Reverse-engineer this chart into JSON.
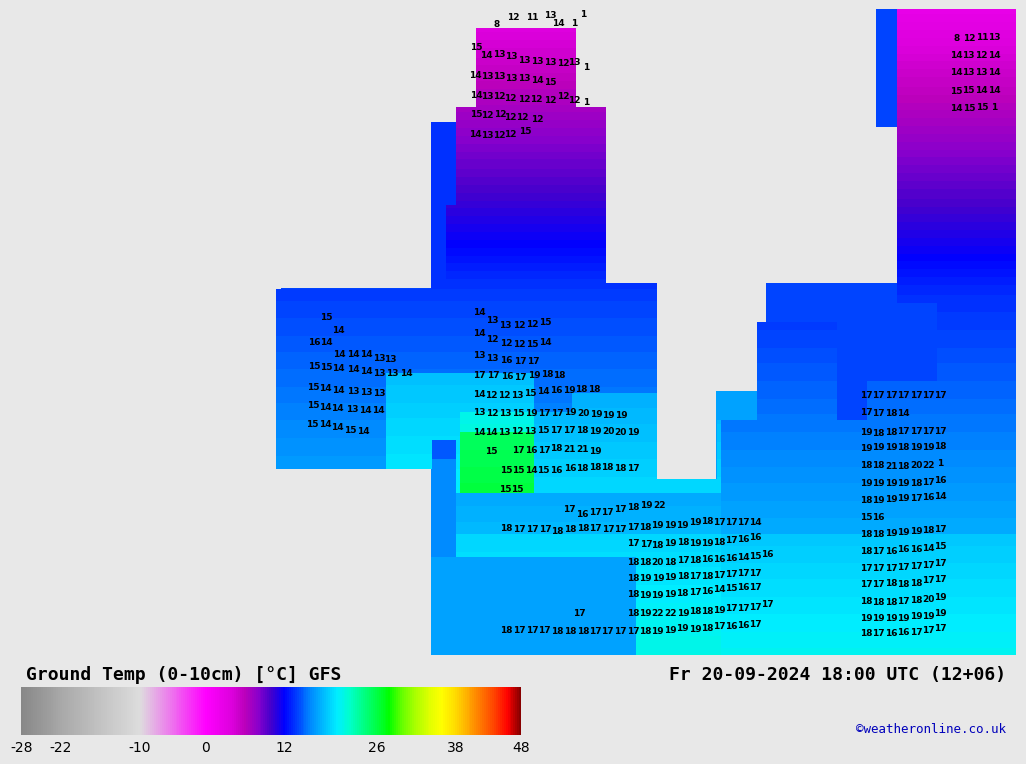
{
  "title_left": "Ground Temp (0-10cm) [°C] GFS",
  "title_right": "Fr 20-09-2024 18:00 UTC (12+06)",
  "credit": "©weatheronline.co.uk",
  "bg_color": "#e8e8e8",
  "sea_color": "#d8d8d8",
  "colorbar_ticks": [
    -28,
    -22,
    -10,
    0,
    12,
    26,
    38,
    48
  ],
  "cmap_nodes": [
    [
      0.0,
      "#888888"
    ],
    [
      0.083,
      "#aaaaaa"
    ],
    [
      0.237,
      "#dddddd"
    ],
    [
      0.368,
      "#ff00ff"
    ],
    [
      0.421,
      "#dd00dd"
    ],
    [
      0.447,
      "#bb00bb"
    ],
    [
      0.474,
      "#8800cc"
    ],
    [
      0.5,
      "#4400cc"
    ],
    [
      0.526,
      "#0000ff"
    ],
    [
      0.553,
      "#0044ff"
    ],
    [
      0.579,
      "#0088ff"
    ],
    [
      0.605,
      "#00bbff"
    ],
    [
      0.632,
      "#00eeff"
    ],
    [
      0.658,
      "#00ffcc"
    ],
    [
      0.684,
      "#00ff88"
    ],
    [
      0.711,
      "#00ff44"
    ],
    [
      0.737,
      "#00ff00"
    ],
    [
      0.763,
      "#66ff00"
    ],
    [
      0.789,
      "#aaff00"
    ],
    [
      0.816,
      "#ddff00"
    ],
    [
      0.842,
      "#ffff00"
    ],
    [
      0.868,
      "#ffdd00"
    ],
    [
      0.895,
      "#ffaa00"
    ],
    [
      0.921,
      "#ff7700"
    ],
    [
      0.947,
      "#ff4400"
    ],
    [
      0.974,
      "#ff0000"
    ],
    [
      1.0,
      "#880000"
    ]
  ],
  "temp_labels": [
    [
      480,
      15,
      "8"
    ],
    [
      497,
      8,
      "12"
    ],
    [
      516,
      8,
      "11"
    ],
    [
      534,
      6,
      "13"
    ],
    [
      542,
      14,
      "14"
    ],
    [
      558,
      14,
      "1"
    ],
    [
      567,
      5,
      "1"
    ],
    [
      460,
      38,
      "15"
    ],
    [
      470,
      47,
      "14"
    ],
    [
      483,
      46,
      "13"
    ],
    [
      495,
      48,
      "13"
    ],
    [
      508,
      52,
      "13"
    ],
    [
      521,
      53,
      "13"
    ],
    [
      534,
      54,
      "13"
    ],
    [
      547,
      55,
      "12"
    ],
    [
      558,
      54,
      "13"
    ],
    [
      570,
      59,
      "1"
    ],
    [
      459,
      67,
      "14"
    ],
    [
      471,
      68,
      "13"
    ],
    [
      483,
      68,
      "13"
    ],
    [
      495,
      70,
      "13"
    ],
    [
      508,
      70,
      "13"
    ],
    [
      521,
      72,
      "14"
    ],
    [
      534,
      74,
      "15"
    ],
    [
      460,
      87,
      "14"
    ],
    [
      471,
      88,
      "13"
    ],
    [
      483,
      89,
      "12"
    ],
    [
      494,
      91,
      "12"
    ],
    [
      508,
      92,
      "12"
    ],
    [
      520,
      92,
      "12"
    ],
    [
      534,
      93,
      "12"
    ],
    [
      547,
      88,
      "12"
    ],
    [
      558,
      93,
      "12"
    ],
    [
      570,
      95,
      "1"
    ],
    [
      460,
      107,
      "15"
    ],
    [
      471,
      108,
      "12"
    ],
    [
      484,
      107,
      "12"
    ],
    [
      494,
      110,
      "12"
    ],
    [
      506,
      110,
      "12"
    ],
    [
      521,
      112,
      "12"
    ],
    [
      459,
      127,
      "14"
    ],
    [
      471,
      128,
      "13"
    ],
    [
      483,
      128,
      "12"
    ],
    [
      494,
      127,
      "12"
    ],
    [
      509,
      124,
      "15"
    ],
    [
      310,
      315,
      "15"
    ],
    [
      322,
      328,
      "14"
    ],
    [
      298,
      340,
      "16"
    ],
    [
      310,
      340,
      "14"
    ],
    [
      323,
      352,
      "14"
    ],
    [
      337,
      353,
      "14"
    ],
    [
      350,
      352,
      "14"
    ],
    [
      363,
      357,
      "13"
    ],
    [
      374,
      358,
      "13"
    ],
    [
      298,
      365,
      "15"
    ],
    [
      310,
      366,
      "15"
    ],
    [
      322,
      367,
      "14"
    ],
    [
      337,
      368,
      "14"
    ],
    [
      350,
      370,
      "14"
    ],
    [
      363,
      372,
      "13"
    ],
    [
      376,
      372,
      "13"
    ],
    [
      390,
      372,
      "14"
    ],
    [
      297,
      386,
      "15"
    ],
    [
      309,
      387,
      "14"
    ],
    [
      322,
      389,
      "14"
    ],
    [
      337,
      390,
      "13"
    ],
    [
      350,
      391,
      "13"
    ],
    [
      363,
      392,
      "13"
    ],
    [
      297,
      405,
      "15"
    ],
    [
      309,
      407,
      "14"
    ],
    [
      321,
      408,
      "14"
    ],
    [
      336,
      409,
      "13"
    ],
    [
      349,
      410,
      "14"
    ],
    [
      362,
      410,
      "14"
    ],
    [
      296,
      424,
      "15"
    ],
    [
      309,
      424,
      "14"
    ],
    [
      321,
      427,
      "14"
    ],
    [
      334,
      430,
      "15"
    ],
    [
      347,
      431,
      "14"
    ],
    [
      463,
      310,
      "14"
    ],
    [
      476,
      318,
      "13"
    ],
    [
      489,
      323,
      "13"
    ],
    [
      503,
      323,
      "12"
    ],
    [
      516,
      322,
      "12"
    ],
    [
      529,
      320,
      "15"
    ],
    [
      463,
      331,
      "14"
    ],
    [
      476,
      337,
      "12"
    ],
    [
      490,
      341,
      "12"
    ],
    [
      503,
      342,
      "12"
    ],
    [
      516,
      342,
      "15"
    ],
    [
      529,
      340,
      "14"
    ],
    [
      463,
      354,
      "13"
    ],
    [
      476,
      357,
      "13"
    ],
    [
      490,
      359,
      "16"
    ],
    [
      504,
      360,
      "17"
    ],
    [
      517,
      360,
      "17"
    ],
    [
      463,
      374,
      "17"
    ],
    [
      477,
      374,
      "17"
    ],
    [
      491,
      375,
      "16"
    ],
    [
      504,
      376,
      "17"
    ],
    [
      518,
      374,
      "19"
    ],
    [
      531,
      373,
      "18"
    ],
    [
      543,
      374,
      "18"
    ],
    [
      463,
      393,
      "14"
    ],
    [
      475,
      394,
      "12"
    ],
    [
      488,
      394,
      "12"
    ],
    [
      501,
      394,
      "13"
    ],
    [
      514,
      392,
      "15"
    ],
    [
      527,
      390,
      "14"
    ],
    [
      540,
      389,
      "16"
    ],
    [
      553,
      389,
      "19"
    ],
    [
      565,
      388,
      "18"
    ],
    [
      578,
      388,
      "18"
    ],
    [
      463,
      412,
      "13"
    ],
    [
      476,
      413,
      "12"
    ],
    [
      489,
      413,
      "13"
    ],
    [
      502,
      413,
      "15"
    ],
    [
      515,
      413,
      "19"
    ],
    [
      528,
      413,
      "17"
    ],
    [
      541,
      413,
      "17"
    ],
    [
      554,
      412,
      "19"
    ],
    [
      567,
      413,
      "20"
    ],
    [
      580,
      414,
      "19"
    ],
    [
      592,
      415,
      "19"
    ],
    [
      605,
      415,
      "19"
    ],
    [
      463,
      432,
      "14"
    ],
    [
      475,
      432,
      "14"
    ],
    [
      488,
      432,
      "13"
    ],
    [
      501,
      431,
      "12"
    ],
    [
      514,
      431,
      "13"
    ],
    [
      527,
      430,
      "15"
    ],
    [
      540,
      430,
      "17"
    ],
    [
      553,
      430,
      "17"
    ],
    [
      566,
      430,
      "18"
    ],
    [
      579,
      431,
      "19"
    ],
    [
      592,
      431,
      "20"
    ],
    [
      604,
      432,
      "20"
    ],
    [
      617,
      432,
      "19"
    ],
    [
      475,
      452,
      "15"
    ],
    [
      502,
      451,
      "17"
    ],
    [
      515,
      451,
      "16"
    ],
    [
      528,
      451,
      "17"
    ],
    [
      540,
      449,
      "18"
    ],
    [
      553,
      450,
      "21"
    ],
    [
      566,
      450,
      "21"
    ],
    [
      579,
      452,
      "19"
    ],
    [
      490,
      471,
      "15"
    ],
    [
      502,
      471,
      "15"
    ],
    [
      515,
      471,
      "14"
    ],
    [
      527,
      471,
      "15"
    ],
    [
      540,
      471,
      "16"
    ],
    [
      554,
      469,
      "16"
    ],
    [
      566,
      469,
      "18"
    ],
    [
      579,
      468,
      "18"
    ],
    [
      591,
      468,
      "18"
    ],
    [
      604,
      469,
      "18"
    ],
    [
      617,
      469,
      "17"
    ],
    [
      489,
      491,
      "15"
    ],
    [
      501,
      491,
      "15"
    ],
    [
      553,
      511,
      "17"
    ],
    [
      566,
      516,
      "16"
    ],
    [
      579,
      514,
      "17"
    ],
    [
      591,
      514,
      "17"
    ],
    [
      604,
      511,
      "17"
    ],
    [
      617,
      509,
      "18"
    ],
    [
      630,
      507,
      "19"
    ],
    [
      643,
      507,
      "22"
    ],
    [
      490,
      531,
      "18"
    ],
    [
      503,
      532,
      "17"
    ],
    [
      516,
      532,
      "17"
    ],
    [
      529,
      532,
      "17"
    ],
    [
      541,
      534,
      "18"
    ],
    [
      554,
      532,
      "18"
    ],
    [
      567,
      531,
      "18"
    ],
    [
      579,
      531,
      "17"
    ],
    [
      592,
      532,
      "17"
    ],
    [
      604,
      532,
      "17"
    ],
    [
      617,
      530,
      "17"
    ],
    [
      629,
      529,
      "18"
    ],
    [
      641,
      527,
      "19"
    ],
    [
      654,
      527,
      "19"
    ],
    [
      666,
      527,
      "19"
    ],
    [
      679,
      524,
      "19"
    ],
    [
      691,
      523,
      "18"
    ],
    [
      703,
      524,
      "17"
    ],
    [
      715,
      524,
      "17"
    ],
    [
      727,
      524,
      "17"
    ],
    [
      739,
      524,
      "14"
    ],
    [
      617,
      546,
      "17"
    ],
    [
      630,
      547,
      "17"
    ],
    [
      641,
      548,
      "18"
    ],
    [
      654,
      546,
      "19"
    ],
    [
      667,
      545,
      "18"
    ],
    [
      679,
      546,
      "19"
    ],
    [
      691,
      546,
      "19"
    ],
    [
      703,
      545,
      "18"
    ],
    [
      715,
      543,
      "17"
    ],
    [
      727,
      542,
      "16"
    ],
    [
      739,
      540,
      "16"
    ],
    [
      617,
      565,
      "18"
    ],
    [
      629,
      565,
      "18"
    ],
    [
      641,
      565,
      "20"
    ],
    [
      654,
      565,
      "18"
    ],
    [
      667,
      563,
      "17"
    ],
    [
      679,
      563,
      "18"
    ],
    [
      691,
      562,
      "16"
    ],
    [
      703,
      562,
      "16"
    ],
    [
      715,
      561,
      "16"
    ],
    [
      727,
      560,
      "14"
    ],
    [
      739,
      559,
      "15"
    ],
    [
      751,
      557,
      "16"
    ],
    [
      617,
      582,
      "18"
    ],
    [
      629,
      582,
      "19"
    ],
    [
      642,
      582,
      "19"
    ],
    [
      654,
      581,
      "19"
    ],
    [
      667,
      580,
      "18"
    ],
    [
      679,
      580,
      "17"
    ],
    [
      691,
      580,
      "18"
    ],
    [
      703,
      579,
      "17"
    ],
    [
      715,
      578,
      "17"
    ],
    [
      727,
      577,
      "17"
    ],
    [
      739,
      577,
      "17"
    ],
    [
      617,
      598,
      "18"
    ],
    [
      629,
      599,
      "19"
    ],
    [
      641,
      599,
      "19"
    ],
    [
      654,
      598,
      "19"
    ],
    [
      666,
      597,
      "18"
    ],
    [
      679,
      596,
      "17"
    ],
    [
      691,
      595,
      "16"
    ],
    [
      703,
      593,
      "14"
    ],
    [
      715,
      592,
      "15"
    ],
    [
      727,
      591,
      "16"
    ],
    [
      739,
      591,
      "17"
    ],
    [
      563,
      617,
      "17"
    ],
    [
      617,
      617,
      "18"
    ],
    [
      629,
      618,
      "19"
    ],
    [
      641,
      618,
      "22"
    ],
    [
      654,
      617,
      "22"
    ],
    [
      667,
      617,
      "19"
    ],
    [
      679,
      615,
      "18"
    ],
    [
      691,
      615,
      "18"
    ],
    [
      703,
      614,
      "19"
    ],
    [
      715,
      612,
      "17"
    ],
    [
      727,
      612,
      "17"
    ],
    [
      739,
      611,
      "17"
    ],
    [
      751,
      608,
      "17"
    ],
    [
      490,
      635,
      "18"
    ],
    [
      503,
      635,
      "17"
    ],
    [
      516,
      635,
      "17"
    ],
    [
      528,
      635,
      "17"
    ],
    [
      541,
      636,
      "18"
    ],
    [
      554,
      636,
      "18"
    ],
    [
      567,
      636,
      "18"
    ],
    [
      579,
      636,
      "17"
    ],
    [
      591,
      636,
      "17"
    ],
    [
      604,
      636,
      "17"
    ],
    [
      617,
      636,
      "17"
    ],
    [
      629,
      636,
      "18"
    ],
    [
      641,
      636,
      "19"
    ],
    [
      654,
      635,
      "19"
    ],
    [
      666,
      633,
      "19"
    ],
    [
      679,
      634,
      "19"
    ],
    [
      691,
      633,
      "18"
    ],
    [
      703,
      631,
      "17"
    ],
    [
      715,
      631,
      "16"
    ],
    [
      727,
      630,
      "16"
    ],
    [
      739,
      629,
      "17"
    ],
    [
      850,
      394,
      "17"
    ],
    [
      862,
      394,
      "17"
    ],
    [
      875,
      394,
      "17"
    ],
    [
      887,
      394,
      "17"
    ],
    [
      900,
      394,
      "17"
    ],
    [
      912,
      394,
      "17"
    ],
    [
      924,
      394,
      "17"
    ],
    [
      850,
      412,
      "17"
    ],
    [
      862,
      413,
      "17"
    ],
    [
      875,
      413,
      "18"
    ],
    [
      887,
      413,
      "14"
    ],
    [
      850,
      432,
      "19"
    ],
    [
      862,
      433,
      "18"
    ],
    [
      875,
      432,
      "18"
    ],
    [
      887,
      431,
      "17"
    ],
    [
      900,
      431,
      "17"
    ],
    [
      912,
      431,
      "17"
    ],
    [
      924,
      431,
      "17"
    ],
    [
      850,
      449,
      "19"
    ],
    [
      862,
      448,
      "19"
    ],
    [
      875,
      448,
      "19"
    ],
    [
      887,
      448,
      "18"
    ],
    [
      900,
      448,
      "19"
    ],
    [
      912,
      448,
      "19"
    ],
    [
      924,
      447,
      "18"
    ],
    [
      850,
      466,
      "18"
    ],
    [
      862,
      466,
      "18"
    ],
    [
      875,
      467,
      "21"
    ],
    [
      887,
      467,
      "18"
    ],
    [
      900,
      466,
      "20"
    ],
    [
      912,
      466,
      "22"
    ],
    [
      924,
      464,
      "1"
    ],
    [
      850,
      484,
      "19"
    ],
    [
      862,
      484,
      "19"
    ],
    [
      875,
      484,
      "19"
    ],
    [
      887,
      484,
      "19"
    ],
    [
      900,
      484,
      "18"
    ],
    [
      912,
      483,
      "17"
    ],
    [
      924,
      481,
      "16"
    ],
    [
      850,
      502,
      "18"
    ],
    [
      862,
      502,
      "19"
    ],
    [
      875,
      501,
      "19"
    ],
    [
      887,
      500,
      "19"
    ],
    [
      900,
      500,
      "17"
    ],
    [
      912,
      499,
      "16"
    ],
    [
      924,
      498,
      "14"
    ],
    [
      850,
      519,
      "15"
    ],
    [
      862,
      519,
      "16"
    ],
    [
      850,
      537,
      "18"
    ],
    [
      862,
      537,
      "18"
    ],
    [
      875,
      536,
      "19"
    ],
    [
      887,
      535,
      "19"
    ],
    [
      900,
      534,
      "19"
    ],
    [
      912,
      533,
      "18"
    ],
    [
      924,
      532,
      "17"
    ],
    [
      850,
      554,
      "18"
    ],
    [
      862,
      554,
      "17"
    ],
    [
      875,
      554,
      "16"
    ],
    [
      887,
      552,
      "16"
    ],
    [
      900,
      552,
      "16"
    ],
    [
      912,
      551,
      "14"
    ],
    [
      924,
      549,
      "15"
    ],
    [
      850,
      571,
      "17"
    ],
    [
      862,
      571,
      "17"
    ],
    [
      875,
      571,
      "17"
    ],
    [
      887,
      570,
      "17"
    ],
    [
      900,
      569,
      "17"
    ],
    [
      912,
      568,
      "17"
    ],
    [
      924,
      566,
      "17"
    ],
    [
      850,
      588,
      "17"
    ],
    [
      862,
      588,
      "17"
    ],
    [
      875,
      587,
      "18"
    ],
    [
      887,
      588,
      "18"
    ],
    [
      900,
      587,
      "18"
    ],
    [
      912,
      584,
      "17"
    ],
    [
      924,
      583,
      "17"
    ],
    [
      850,
      605,
      "18"
    ],
    [
      862,
      606,
      "18"
    ],
    [
      875,
      606,
      "18"
    ],
    [
      887,
      605,
      "17"
    ],
    [
      900,
      604,
      "18"
    ],
    [
      912,
      603,
      "20"
    ],
    [
      924,
      601,
      "19"
    ],
    [
      850,
      623,
      "19"
    ],
    [
      862,
      623,
      "19"
    ],
    [
      875,
      623,
      "19"
    ],
    [
      887,
      623,
      "19"
    ],
    [
      900,
      621,
      "19"
    ],
    [
      912,
      621,
      "19"
    ],
    [
      924,
      618,
      "19"
    ],
    [
      850,
      638,
      "18"
    ],
    [
      862,
      638,
      "17"
    ],
    [
      875,
      638,
      "16"
    ],
    [
      887,
      637,
      "16"
    ],
    [
      900,
      637,
      "17"
    ],
    [
      912,
      635,
      "17"
    ],
    [
      924,
      633,
      "17"
    ],
    [
      940,
      29,
      "8"
    ],
    [
      953,
      29,
      "12"
    ],
    [
      966,
      28,
      "11"
    ],
    [
      978,
      28,
      "13"
    ],
    [
      940,
      47,
      "14"
    ],
    [
      952,
      47,
      "13"
    ],
    [
      965,
      47,
      "12"
    ],
    [
      978,
      47,
      "14"
    ],
    [
      940,
      64,
      "14"
    ],
    [
      952,
      64,
      "13"
    ],
    [
      965,
      64,
      "13"
    ],
    [
      978,
      64,
      "14"
    ],
    [
      940,
      83,
      "15"
    ],
    [
      952,
      82,
      "15"
    ],
    [
      965,
      82,
      "14"
    ],
    [
      978,
      82,
      "14"
    ],
    [
      940,
      101,
      "14"
    ],
    [
      953,
      101,
      "15"
    ],
    [
      966,
      100,
      "15"
    ],
    [
      978,
      100,
      "1"
    ]
  ]
}
